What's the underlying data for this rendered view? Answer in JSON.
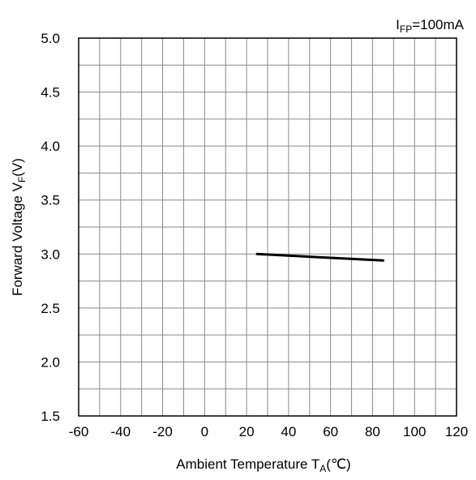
{
  "chart_data": {
    "type": "line",
    "annotation": {
      "main": "I",
      "sub": "FP",
      "rest": "=100mA"
    },
    "xlabel": {
      "main": "Ambient Temperature  T",
      "sub": "A",
      "rest": "(℃)"
    },
    "ylabel": {
      "main": "Forward Voltage V",
      "sub": "F",
      "rest": "(V)"
    },
    "xlim": [
      -60,
      120
    ],
    "ylim": [
      1.5,
      5.0
    ],
    "x_ticks": [
      "-60",
      "-40",
      "-20",
      "0",
      "20",
      "40",
      "60",
      "80",
      "100",
      "120"
    ],
    "y_ticks": [
      "1.5",
      "2.0",
      "2.5",
      "3.0",
      "3.5",
      "4.0",
      "4.5",
      "5.0"
    ],
    "grid": true,
    "series": [
      {
        "color": "#000000",
        "x": [
          25,
          85
        ],
        "y": [
          3.0,
          2.94
        ]
      }
    ]
  }
}
